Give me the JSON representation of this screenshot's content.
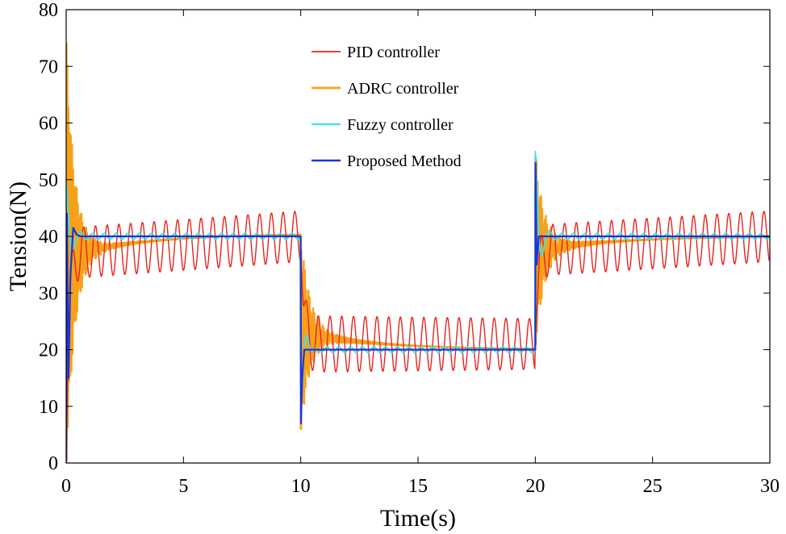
{
  "chart_data": {
    "type": "line",
    "title": "",
    "xlabel": "Time(s)",
    "ylabel": "Tension(N)",
    "xlim": [
      0,
      30
    ],
    "ylim": [
      0,
      80
    ],
    "xticks": [
      0,
      5,
      10,
      15,
      20,
      25,
      30
    ],
    "yticks": [
      0,
      10,
      20,
      30,
      40,
      50,
      60,
      70,
      80
    ],
    "xtick_labels": [
      "0",
      "5",
      "10",
      "15",
      "20",
      "25",
      "30"
    ],
    "ytick_labels": [
      "0",
      "10",
      "20",
      "30",
      "40",
      "50",
      "60",
      "70",
      "80"
    ],
    "grid": false,
    "legend_position": "top-center",
    "setpoint": [
      {
        "from": 0,
        "to": 10,
        "value": 40
      },
      {
        "from": 10,
        "to": 20,
        "value": 20
      },
      {
        "from": 20,
        "to": 30,
        "value": 40
      }
    ],
    "series": [
      {
        "name": "PID controller",
        "color": "#e8231f",
        "oscillation_period_s": 0.5,
        "segments": [
          {
            "from": 0,
            "to": 10,
            "mean": 38.5,
            "amplitude_start": 4.5,
            "amplitude_end": 4.5,
            "mean_start": 37,
            "mean_end": 40
          },
          {
            "from": 10,
            "to": 20,
            "mean": 21,
            "amplitude_start": 5,
            "amplitude_end": 4.5
          },
          {
            "from": 20,
            "to": 30,
            "mean": 38.5,
            "amplitude_start": 4.5,
            "amplitude_end": 4.5,
            "mean_start": 37.5,
            "mean_end": 40
          }
        ]
      },
      {
        "name": "ADRC controller",
        "color": "#f7a11a",
        "peaks": [
          {
            "t": 0,
            "value": 74
          },
          {
            "t": 10,
            "value": 6
          },
          {
            "t": 20,
            "value": 54
          }
        ],
        "segments": [
          {
            "from": 0,
            "to": 10,
            "settle_from": 36.5,
            "settle_to": 40.5
          },
          {
            "from": 10,
            "to": 20,
            "settle_from": 23,
            "settle_to": 20
          },
          {
            "from": 20,
            "to": 30,
            "settle_from": 37.5,
            "settle_to": 40
          }
        ]
      },
      {
        "name": "Fuzzy controller",
        "color": "#35e6f0",
        "peaks": [
          {
            "t": 0,
            "value": 50
          },
          {
            "t": 10,
            "value": 8
          },
          {
            "t": 20,
            "value": 55
          }
        ],
        "ripple_amplitude": 0.5,
        "segments": [
          {
            "from": 0,
            "to": 10,
            "value": 40
          },
          {
            "from": 10,
            "to": 20,
            "value": 20
          },
          {
            "from": 20,
            "to": 30,
            "value": 40
          }
        ]
      },
      {
        "name": "Proposed Method",
        "color": "#1a35d6",
        "peaks": [
          {
            "t": 0,
            "value": 44
          },
          {
            "t": 10,
            "value": 7
          },
          {
            "t": 20,
            "value": 53
          }
        ],
        "segments": [
          {
            "from": 0,
            "to": 10,
            "value": 40
          },
          {
            "from": 10,
            "to": 20,
            "value": 20
          },
          {
            "from": 20,
            "to": 30,
            "value": 40
          }
        ]
      }
    ]
  }
}
